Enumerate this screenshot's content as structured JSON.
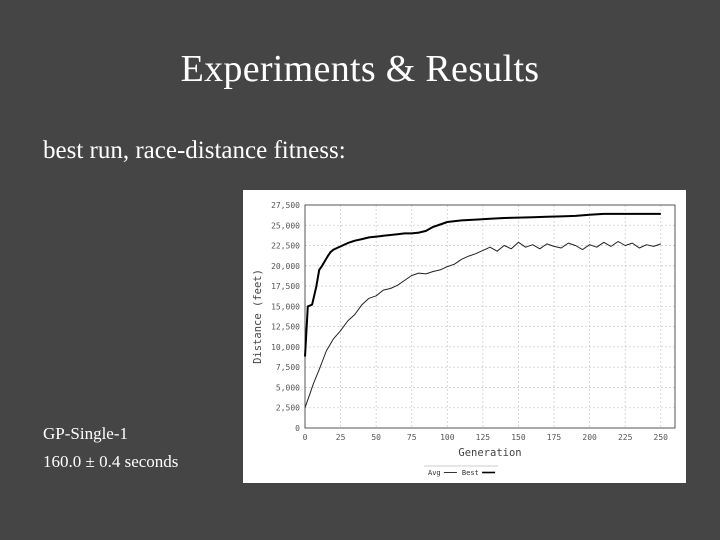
{
  "slide": {
    "title": "Experiments & Results",
    "subtitle": "best run, race-distance fitness:",
    "caption_line1": "GP-Single-1",
    "caption_line2": "160.0 ± 0.4 seconds"
  },
  "chart_data": {
    "type": "line",
    "title": "",
    "xlabel": "Generation",
    "ylabel": "Distance (feet)",
    "xlim": [
      0,
      260
    ],
    "ylim": [
      0,
      27500
    ],
    "x_ticks": [
      0,
      25,
      50,
      75,
      100,
      125,
      150,
      175,
      200,
      225,
      250
    ],
    "y_ticks": [
      0,
      2500,
      5000,
      7500,
      10000,
      12500,
      15000,
      17500,
      20000,
      22500,
      25000,
      27500
    ],
    "y_tick_labels": [
      "0",
      "2,500",
      "5,000",
      "7,500",
      "10,000",
      "12,500",
      "15,000",
      "17,500",
      "20,000",
      "22,500",
      "25,000",
      "27,500"
    ],
    "grid": true,
    "legend_position": "bottom",
    "colors": {
      "best": "#000000",
      "avg": "#222222",
      "grid": "#cfcfcf",
      "axis": "#555555"
    },
    "series": [
      {
        "name": "Best",
        "x": [
          0,
          2,
          5,
          8,
          10,
          12,
          14,
          16,
          18,
          20,
          25,
          30,
          35,
          40,
          45,
          50,
          55,
          60,
          65,
          70,
          75,
          80,
          85,
          90,
          95,
          100,
          110,
          120,
          130,
          140,
          150,
          160,
          170,
          180,
          190,
          200,
          210,
          220,
          230,
          240,
          250
        ],
        "y": [
          8800,
          15000,
          15200,
          17500,
          19500,
          20000,
          20600,
          21200,
          21700,
          22000,
          22400,
          22800,
          23100,
          23300,
          23500,
          23600,
          23700,
          23800,
          23900,
          24000,
          24000,
          24100,
          24300,
          24800,
          25100,
          25400,
          25600,
          25700,
          25800,
          25900,
          25950,
          26000,
          26050,
          26100,
          26150,
          26300,
          26400,
          26400,
          26400,
          26400,
          26400
        ]
      },
      {
        "name": "Avg",
        "x": [
          0,
          3,
          6,
          10,
          15,
          20,
          25,
          30,
          35,
          40,
          45,
          50,
          55,
          60,
          65,
          70,
          75,
          80,
          85,
          90,
          95,
          100,
          105,
          110,
          115,
          120,
          125,
          130,
          135,
          140,
          145,
          150,
          155,
          160,
          165,
          170,
          175,
          180,
          185,
          190,
          195,
          200,
          205,
          210,
          215,
          220,
          225,
          230,
          235,
          240,
          245,
          250
        ],
        "y": [
          2500,
          4000,
          5500,
          7200,
          9500,
          11000,
          12000,
          13200,
          14000,
          15200,
          16000,
          16300,
          17000,
          17200,
          17600,
          18200,
          18800,
          19100,
          19000,
          19300,
          19500,
          19900,
          20200,
          20800,
          21200,
          21500,
          21900,
          22300,
          21800,
          22500,
          22100,
          22900,
          22300,
          22600,
          22100,
          22700,
          22400,
          22200,
          22800,
          22500,
          22000,
          22600,
          22300,
          22900,
          22400,
          23000,
          22500,
          22800,
          22200,
          22600,
          22400,
          22700
        ]
      }
    ]
  }
}
